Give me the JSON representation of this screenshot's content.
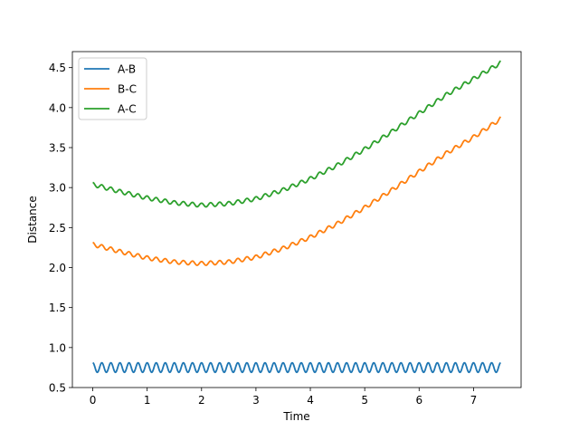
{
  "chart_data": {
    "type": "line",
    "title": "",
    "xlabel": "Time",
    "ylabel": "Distance",
    "xlim": [
      -0.375,
      7.875
    ],
    "ylim": [
      0.5,
      4.7
    ],
    "xticks": [
      0,
      1,
      2,
      3,
      4,
      5,
      6,
      7
    ],
    "yticks": [
      0.5,
      1.0,
      1.5,
      2.0,
      2.5,
      3.0,
      3.5,
      4.0,
      4.5
    ],
    "xtick_labels": [
      "0",
      "1",
      "2",
      "3",
      "4",
      "5",
      "6",
      "7"
    ],
    "ytick_labels": [
      "0.5",
      "1.0",
      "1.5",
      "2.0",
      "2.5",
      "3.0",
      "3.5",
      "4.0",
      "4.5"
    ],
    "grid": false,
    "legend": "top-left",
    "series": [
      {
        "name": "A-B",
        "color": "#1f77b4",
        "x": [
          0,
          0.5,
          1,
          1.5,
          2,
          2.5,
          3,
          3.5,
          4,
          4.5,
          5,
          5.5,
          6,
          6.5,
          7,
          7.5
        ],
        "y": [
          0.75,
          0.75,
          0.75,
          0.75,
          0.75,
          0.75,
          0.75,
          0.75,
          0.75,
          0.75,
          0.75,
          0.75,
          0.75,
          0.75,
          0.75,
          0.75
        ],
        "oscillation": {
          "amplitude": 0.06,
          "cycles": 45
        }
      },
      {
        "name": "B-C",
        "color": "#ff7f0e",
        "x": [
          0,
          0.5,
          1,
          1.5,
          2,
          2.5,
          3,
          3.5,
          4,
          4.5,
          5,
          5.5,
          6,
          6.5,
          7,
          7.5
        ],
        "y": [
          2.29,
          2.2,
          2.12,
          2.07,
          2.05,
          2.07,
          2.13,
          2.24,
          2.38,
          2.55,
          2.75,
          2.97,
          3.2,
          3.43,
          3.63,
          3.86
        ],
        "oscillation": {
          "amplitude": 0.025,
          "cycles": 45
        }
      },
      {
        "name": "A-C",
        "color": "#2ca02c",
        "x": [
          0,
          0.5,
          1,
          1.5,
          2,
          2.5,
          3,
          3.5,
          4,
          4.5,
          5,
          5.5,
          6,
          6.5,
          7,
          7.5
        ],
        "y": [
          3.04,
          2.95,
          2.87,
          2.81,
          2.78,
          2.8,
          2.86,
          2.97,
          3.11,
          3.28,
          3.48,
          3.7,
          3.93,
          4.16,
          4.36,
          4.56
        ],
        "oscillation": {
          "amplitude": 0.025,
          "cycles": 45
        }
      }
    ]
  }
}
